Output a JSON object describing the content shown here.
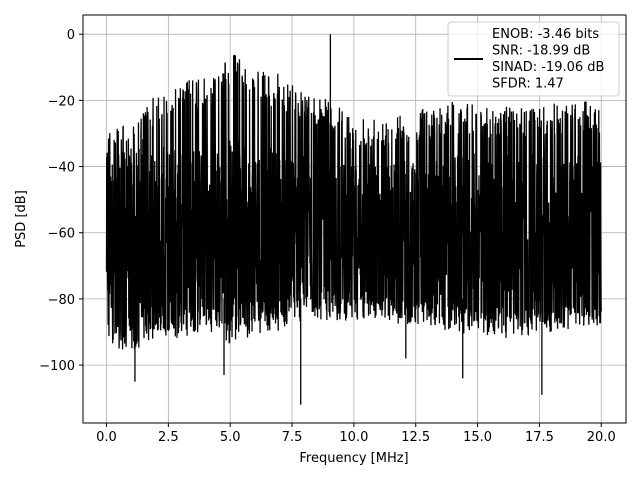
{
  "chart_data": {
    "type": "line",
    "xlabel": "Frequency [MHz]",
    "ylabel": "PSD [dB]",
    "xlim": [
      -0.95,
      21.0
    ],
    "ylim": [
      -117.5,
      5.8
    ],
    "xticks": [
      0.0,
      2.5,
      5.0,
      7.5,
      10.0,
      12.5,
      15.0,
      17.5,
      20.0
    ],
    "xtick_labels": [
      "0.0",
      "2.5",
      "5.0",
      "7.5",
      "10.0",
      "12.5",
      "15.0",
      "17.5",
      "20.0"
    ],
    "yticks": [
      0,
      -20,
      -40,
      -60,
      -80,
      -100
    ],
    "ytick_labels": [
      "0",
      "−20",
      "−40",
      "−60",
      "−80",
      "−100"
    ],
    "grid": true,
    "legend_position": "top-right",
    "series": [
      {
        "name": "ENOB: -3.46 bits\nSNR: -18.99 dB\nSINAD: -19.06 dB\nSFDR: 1.47",
        "color": "#000000",
        "x_range": [
          0.0,
          20.0
        ],
        "noise_floor_mean": -62,
        "upper_envelope": [
          [
            0.0,
            -27
          ],
          [
            0.5,
            -26
          ],
          [
            1.0,
            -28
          ],
          [
            2.0,
            -18
          ],
          [
            2.5,
            -17
          ],
          [
            3.0,
            -14
          ],
          [
            4.0,
            -13
          ],
          [
            4.5,
            -12
          ],
          [
            5.0,
            -5
          ],
          [
            6.0,
            -11
          ],
          [
            7.0,
            -12
          ],
          [
            8.0,
            -17
          ],
          [
            9.0,
            -20
          ],
          [
            10.0,
            -25
          ],
          [
            12.0,
            -24
          ],
          [
            14.0,
            -20
          ],
          [
            16.0,
            -22
          ],
          [
            18.0,
            -21
          ],
          [
            20.0,
            -20
          ]
        ],
        "lower_envelope": [
          [
            0.0,
            -94
          ],
          [
            1.0,
            -96
          ],
          [
            2.0,
            -92
          ],
          [
            3.0,
            -92
          ],
          [
            4.0,
            -90
          ],
          [
            5.0,
            -90
          ],
          [
            6.0,
            -88
          ],
          [
            8.0,
            -84
          ],
          [
            10.0,
            -88
          ],
          [
            12.0,
            -88
          ],
          [
            14.0,
            -90
          ],
          [
            16.0,
            -92
          ],
          [
            18.0,
            -90
          ],
          [
            20.0,
            -88
          ]
        ],
        "spikes": [
          [
            9.05,
            0.0
          ]
        ],
        "dips": [
          [
            1.15,
            -105
          ],
          [
            7.85,
            -112
          ],
          [
            14.4,
            -104
          ],
          [
            17.6,
            -109
          ],
          [
            4.75,
            -103
          ],
          [
            12.1,
            -98
          ]
        ]
      }
    ]
  }
}
